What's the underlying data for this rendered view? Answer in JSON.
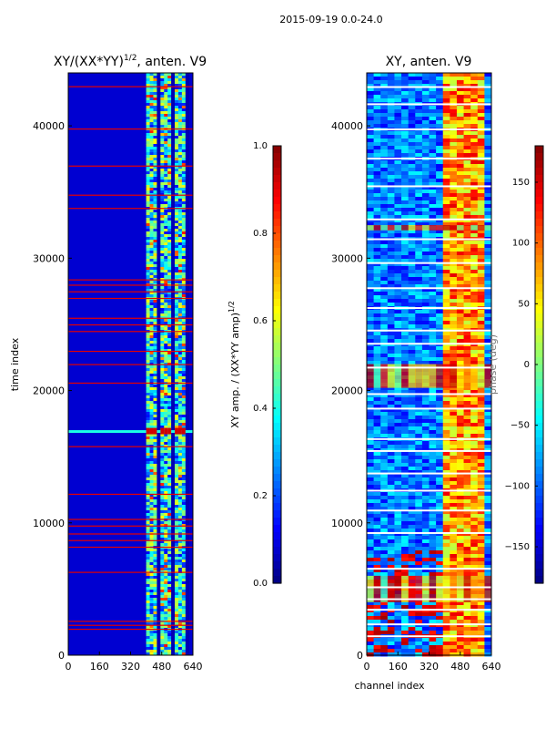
{
  "figure": {
    "suptitle": "2015-09-19 0.0-24.0"
  },
  "chart_data": [
    {
      "type": "heatmap",
      "title": "XY/(XX*YY)",
      "title_exponent": "1/2",
      "title_suffix": ", anten. V9",
      "xlabel": "",
      "ylabel": "time index",
      "xlim": [
        0,
        640
      ],
      "ylim": [
        0,
        44000
      ],
      "xticks": [
        0,
        160,
        320,
        480,
        640
      ],
      "yticks": [
        0,
        10000,
        20000,
        30000,
        40000
      ],
      "colormap": "jet",
      "colorbar": {
        "label": "XY amp. / (XX*YY amp)",
        "label_exponent": "1/2",
        "range": [
          0.0,
          1.0
        ],
        "ticks": [
          "0.0",
          "0.2",
          "0.4",
          "0.6",
          "0.8",
          "1.0"
        ],
        "tick_values": [
          0.0,
          0.2,
          0.4,
          0.6,
          0.8,
          1.0
        ]
      },
      "features": {
        "active_channel_band": [
          400,
          620
        ],
        "flag_rows": [
          2000,
          2300,
          2600,
          6300,
          8200,
          8700,
          9200,
          9800,
          10300,
          12200,
          15800,
          20600,
          22000,
          23000,
          24500,
          25000,
          25500,
          27000,
          27500,
          28000,
          28400,
          33800,
          34800,
          37000,
          39800,
          43000
        ],
        "strong_row": 16900
      }
    },
    {
      "type": "heatmap",
      "title": "XY, anten. V9",
      "xlabel": "channel index",
      "ylabel": "",
      "xlim": [
        0,
        640
      ],
      "ylim": [
        0,
        44000
      ],
      "xticks": [
        0,
        160,
        320,
        480,
        640
      ],
      "yticks": [
        0,
        10000,
        20000,
        30000,
        40000
      ],
      "colormap": "jet",
      "colorbar": {
        "label": "phase (deg)",
        "range": [
          -180,
          180
        ],
        "ticks": [
          "−150",
          "−100",
          "−50",
          "0",
          "50",
          "100",
          "150"
        ],
        "tick_values": [
          -150,
          -100,
          -50,
          0,
          50,
          100,
          150
        ]
      },
      "features": {
        "active_channel_band": [
          390,
          620
        ],
        "white_gap_rows": [
          1500,
          2400,
          3500,
          4300,
          5200,
          6600,
          9300,
          11000,
          12500,
          13800,
          15500,
          16400,
          18700,
          19800,
          21800,
          23600,
          24600,
          26300,
          27800,
          29700,
          31500,
          33000,
          35500,
          37600,
          39800,
          41700,
          43000
        ],
        "flagged_bands": [
          [
            20200,
            22000
          ],
          [
            32100,
            32500
          ],
          [
            4000,
            6000
          ]
        ]
      }
    }
  ]
}
